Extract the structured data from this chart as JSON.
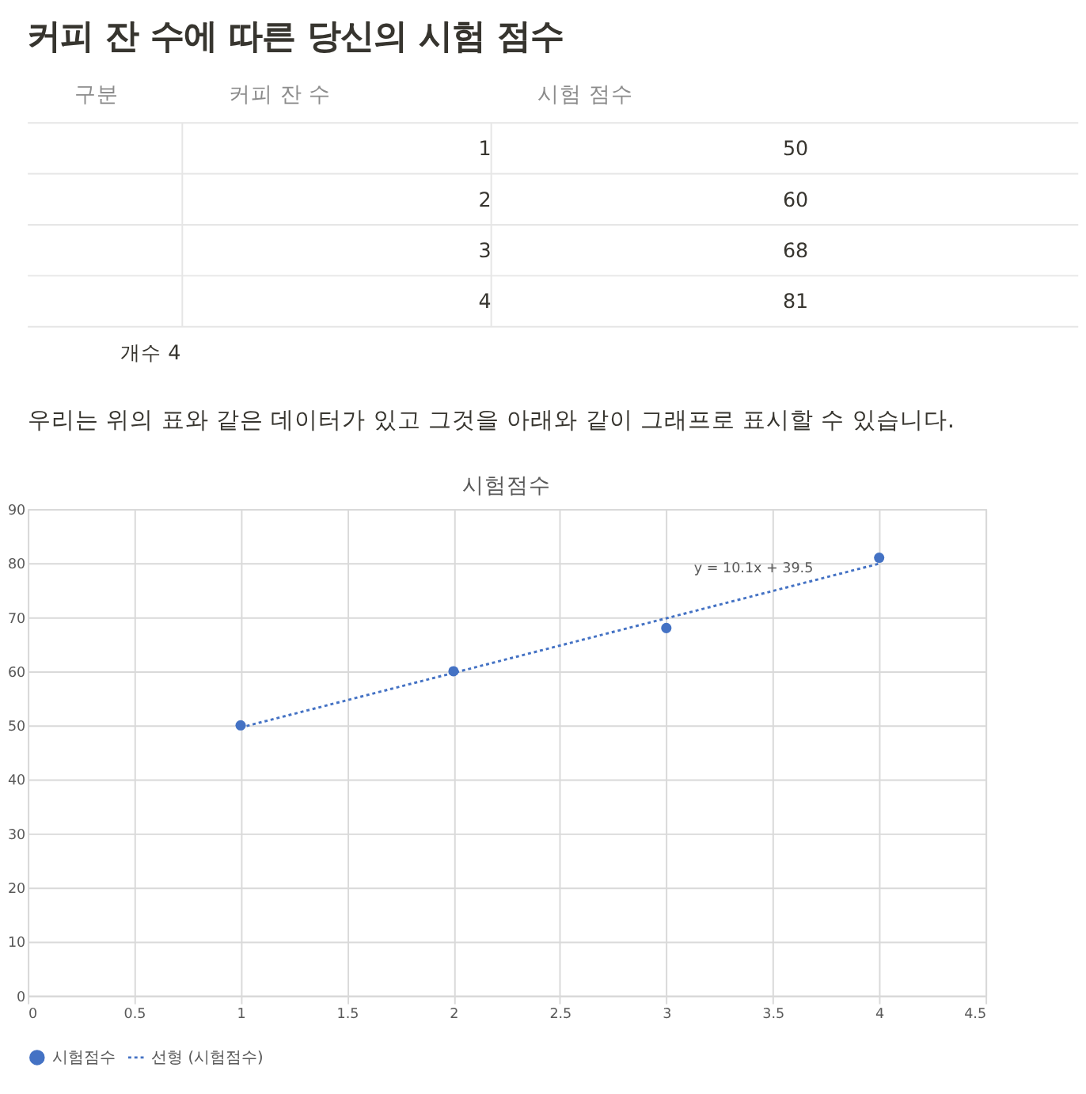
{
  "chart_data": [
    {
      "type": "other",
      "title": "커피 잔 수에 따른 당신의 시험 점수",
      "annotations": [
        "구분",
        "커피 잔 수",
        "시험 점수",
        "1",
        "50",
        "2",
        "60",
        "3",
        "68",
        "4",
        "81",
        "개수 4",
        "우리는 위의 표와 같은 데이터가 있고 그것을 아래와 같이 그래프로 표시할 수 있습니다."
      ]
    },
    {
      "type": "scatter",
      "title": "시험점수",
      "marker": "circle",
      "grid": true,
      "legend": "bottom",
      "xlim": [
        0,
        4.5
      ],
      "xticks": [
        0,
        0.5,
        1,
        1.5,
        2,
        2.5,
        3,
        3.5,
        4,
        4.5
      ],
      "ylim": [
        0,
        90
      ],
      "yticks": [
        0,
        10,
        20,
        30,
        40,
        50,
        60,
        70,
        80,
        90
      ],
      "series": [
        {
          "name": "시험점수",
          "color": "#4472c4",
          "x": [
            1,
            2,
            3,
            4
          ],
          "values": [
            50,
            60,
            68,
            81
          ]
        },
        {
          "name": "선형 (시험점수)",
          "type": "line",
          "line_style": "dotted",
          "marker": "none",
          "color": "#4472c4",
          "x": [
            1,
            4
          ],
          "values": [
            49.6,
            79.9
          ]
        }
      ],
      "annotations": [
        "y = 10.1x + 39.5"
      ]
    }
  ]
}
